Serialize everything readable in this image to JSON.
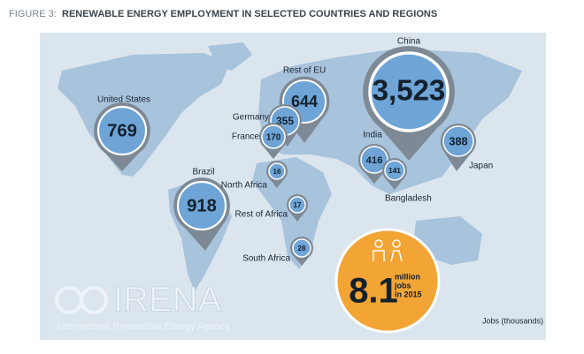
{
  "header": {
    "prefix": "FIGURE 3:",
    "title": "RENEWABLE ENERGY EMPLOYMENT IN SELECTED COUNTRIES AND REGIONS"
  },
  "pins": [
    {
      "label": "United States",
      "value": 769
    },
    {
      "label": "Brazil",
      "value": 918
    },
    {
      "label": "Rest of EU",
      "value": 644
    },
    {
      "label": "Germany",
      "value": 355
    },
    {
      "label": "France",
      "value": 170
    },
    {
      "label": "China",
      "value": 3523,
      "value_label": "3,523"
    },
    {
      "label": "India",
      "value": 416
    },
    {
      "label": "Bangladesh",
      "value": 141
    },
    {
      "label": "Japan",
      "value": 388
    },
    {
      "label": "North Africa",
      "value": 16
    },
    {
      "label": "Rest of Africa",
      "value": 17
    },
    {
      "label": "South Africa",
      "value": 28
    }
  ],
  "total": {
    "value": "8.1",
    "lines": [
      "million",
      "jobs",
      "in 2015"
    ]
  },
  "logo": {
    "name": "IRENA",
    "subtitle": "International Renewable Energy Agency"
  },
  "unit_note": "Jobs (thousands)"
}
